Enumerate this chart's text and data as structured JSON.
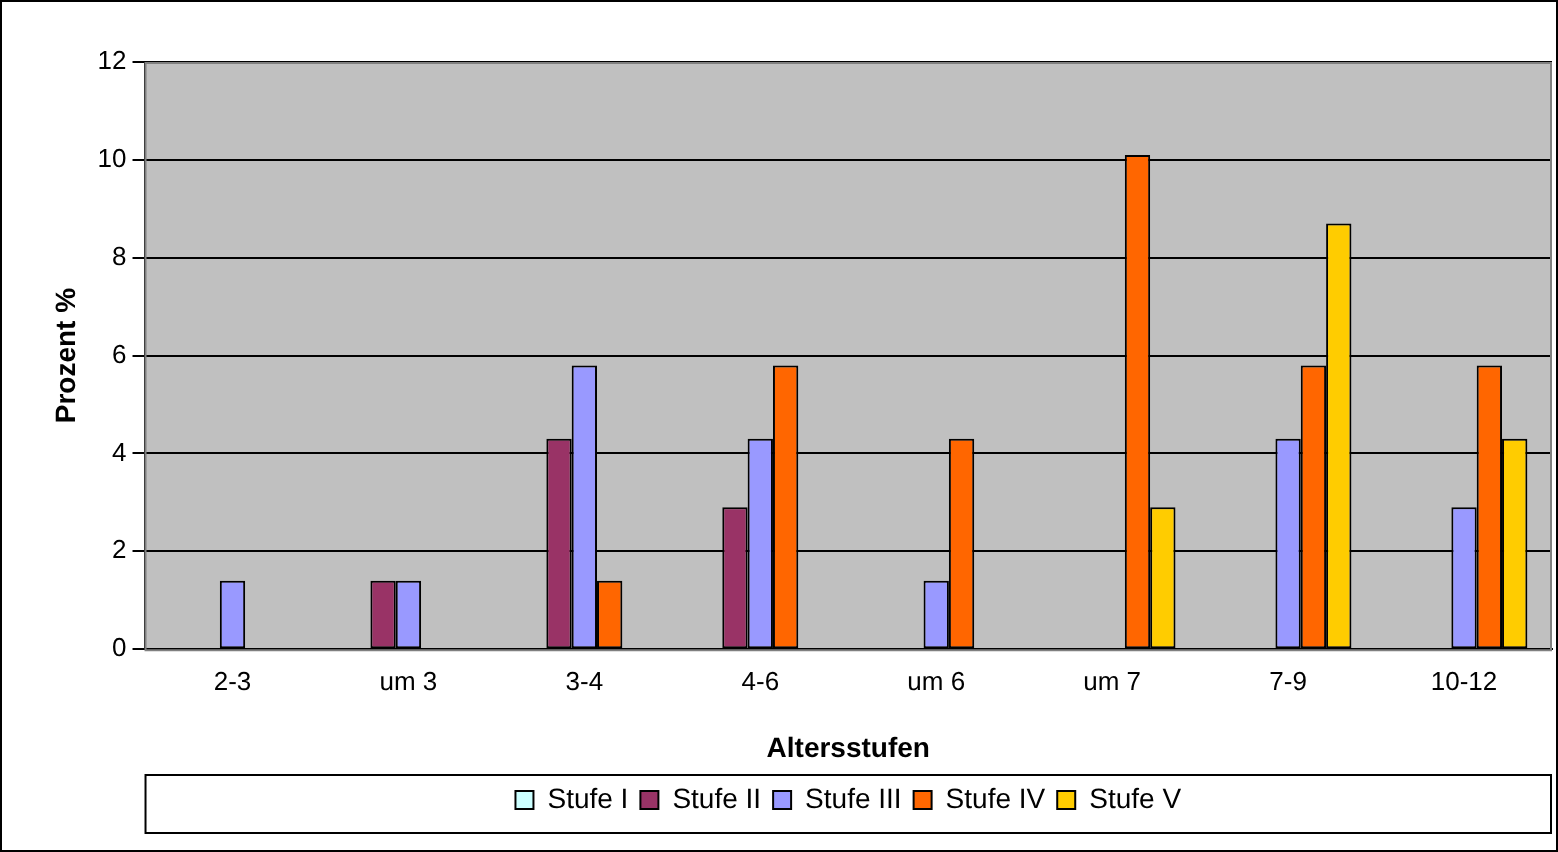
{
  "chart_data": {
    "type": "bar",
    "xlabel": "Altersstufen",
    "ylabel": "Prozent %",
    "categories": [
      "2-3",
      "um 3",
      "3-4",
      "4-6",
      "um 6",
      "um 7",
      "7-9",
      "10-12"
    ],
    "series": [
      {
        "name": "Stufe I",
        "color": "#ccffff",
        "values": [
          null,
          null,
          null,
          null,
          null,
          null,
          null,
          null
        ]
      },
      {
        "name": "Stufe II",
        "color": "#993366",
        "values": [
          null,
          1.4,
          4.3,
          2.9,
          null,
          null,
          null,
          null
        ]
      },
      {
        "name": "Stufe III",
        "color": "#9999ff",
        "values": [
          1.4,
          1.4,
          5.8,
          4.3,
          1.4,
          null,
          4.3,
          2.9
        ]
      },
      {
        "name": "Stufe IV",
        "color": "#ff6600",
        "values": [
          null,
          null,
          1.4,
          5.8,
          4.3,
          10.1,
          5.8,
          5.8
        ]
      },
      {
        "name": "Stufe V",
        "color": "#ffcc00",
        "values": [
          null,
          null,
          null,
          null,
          null,
          2.9,
          8.7,
          4.3
        ]
      }
    ],
    "ylim": [
      0,
      12
    ],
    "yticks": [
      0,
      2,
      4,
      6,
      8,
      10,
      12
    ],
    "grid": "y",
    "legend": "bottom"
  }
}
